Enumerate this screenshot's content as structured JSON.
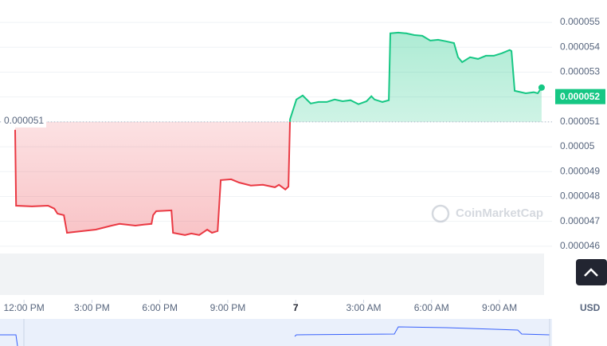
{
  "chart_data": {
    "type": "baseline-line",
    "x": [
      -0.39,
      -0.35,
      0.35,
      1.06,
      1.34,
      1.48,
      1.76,
      1.9,
      2.29,
      3.17,
      3.87,
      4.22,
      4.92,
      5.28,
      5.63,
      5.7,
      5.84,
      6.51,
      6.58,
      7.11,
      7.39,
      7.74,
      8.09,
      8.3,
      8.55,
      8.69,
      9.15,
      9.5,
      10.02,
      10.55,
      11.08,
      11.26,
      11.54,
      11.68,
      11.75,
      12.03,
      12.31,
      12.66,
      13.01,
      13.37,
      13.72,
      14.07,
      14.42,
      14.77,
      15.13,
      15.34,
      15.48,
      15.83,
      16.11,
      16.18,
      16.53,
      16.88,
      17.24,
      17.59,
      17.94,
      18.29,
      18.64,
      18.99,
      19.17,
      19.35,
      19.7,
      20.05,
      20.4,
      20.75,
      21.1,
      21.45,
      21.53,
      21.67,
      22.16,
      22.51,
      22.69,
      22.86
    ],
    "values": [
      5.068e-05,
      4.763e-05,
      4.76e-05,
      4.763e-05,
      4.751e-05,
      4.731e-05,
      4.725e-05,
      4.654e-05,
      4.658e-05,
      4.667e-05,
      4.683e-05,
      4.69e-05,
      4.683e-05,
      4.687e-05,
      4.69e-05,
      4.725e-05,
      4.741e-05,
      4.744e-05,
      4.654e-05,
      4.645e-05,
      4.651e-05,
      4.645e-05,
      4.667e-05,
      4.654e-05,
      4.661e-05,
      4.866e-05,
      4.869e-05,
      4.856e-05,
      4.844e-05,
      4.847e-05,
      4.837e-05,
      4.847e-05,
      4.828e-05,
      4.84e-05,
      5.11e-05,
      5.19e-05,
      5.206e-05,
      5.174e-05,
      5.18e-05,
      5.18e-05,
      5.19e-05,
      5.183e-05,
      5.187e-05,
      5.171e-05,
      5.183e-05,
      5.203e-05,
      5.19e-05,
      5.18e-05,
      5.187e-05,
      5.456e-05,
      5.459e-05,
      5.456e-05,
      5.449e-05,
      5.446e-05,
      5.427e-05,
      5.43e-05,
      5.424e-05,
      5.417e-05,
      5.36e-05,
      5.34e-05,
      5.36e-05,
      5.353e-05,
      5.366e-05,
      5.366e-05,
      5.376e-05,
      5.389e-05,
      5.385e-05,
      5.225e-05,
      5.215e-05,
      5.219e-05,
      5.215e-05,
      5.238e-05
    ],
    "baseline": 5.1e-05,
    "current_price": 5.2e-05,
    "up_color": "#16c784",
    "down_color": "#ea3943",
    "xlim": [
      -1.06,
      23.32
    ],
    "xticks": [
      {
        "value": 0,
        "label": "12:00 PM"
      },
      {
        "value": 3,
        "label": "3:00 PM"
      },
      {
        "value": 6,
        "label": "6:00 PM"
      },
      {
        "value": 9,
        "label": "9:00 PM"
      },
      {
        "value": 12,
        "label": "7"
      },
      {
        "value": 15,
        "label": "3:00 AM"
      },
      {
        "value": 18,
        "label": "6:00 AM"
      },
      {
        "value": 21,
        "label": "9:00 AM"
      }
    ],
    "ylim": [
      4.404e-05,
      5.59e-05
    ],
    "yticks": [
      4.6e-05,
      4.7e-05,
      4.8e-05,
      4.9e-05,
      5e-05,
      5.1e-05,
      5.2e-05,
      5.3e-05,
      5.4e-05,
      5.5e-05
    ],
    "y_unit": "USD",
    "watermark": "CoinMarketCap",
    "grid": true
  }
}
